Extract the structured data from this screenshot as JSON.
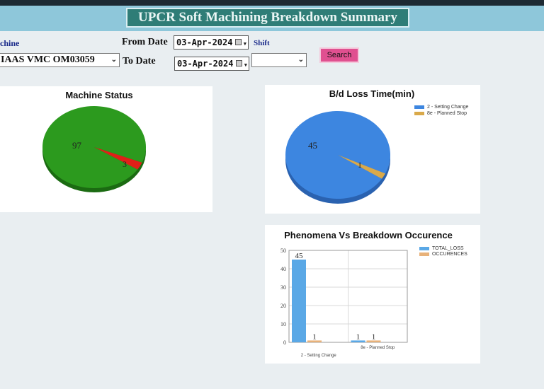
{
  "header": {
    "title": "UPCR Soft Machining Breakdown Summary"
  },
  "filters": {
    "machine_label": "chine",
    "machine_value": "IAAS VMC OM03059",
    "from_date_label": "From Date",
    "from_date_value": "03-Apr-2024",
    "to_date_label": "To Date",
    "to_date_value": "03-Apr-2024",
    "shift_label": "Shift",
    "shift_value": "",
    "search_label": "Search"
  },
  "panels": {
    "machine_status_title": "Machine Status",
    "loss_time_title": "B/d Loss Time(min)",
    "phenomena_title": "Phenomena Vs Breakdown Occurence"
  },
  "chart_data": [
    {
      "type": "pie",
      "title": "Machine Status",
      "labels": [
        "",
        ""
      ],
      "values": [
        97,
        3
      ],
      "colors": [
        "#2c9a1e",
        "#e02018"
      ]
    },
    {
      "type": "pie",
      "title": "B/d Loss Time(min)",
      "labels": [
        "2 - Setting Change",
        "8e - Planned Stop"
      ],
      "values": [
        45,
        1
      ],
      "colors": [
        "#3d86e0",
        "#d9a94a"
      ],
      "legend": "top-right"
    },
    {
      "type": "bar",
      "title": "Phenomena Vs Breakdown Occurence",
      "categories": [
        "2 - Setting Change",
        "8e - Planned Stop"
      ],
      "series": [
        {
          "name": "TOTAL_LOSS",
          "values": [
            45,
            1
          ],
          "color": "#5aa8e6"
        },
        {
          "name": "OCCURENCES",
          "values": [
            1,
            1
          ],
          "color": "#e8b27a"
        }
      ],
      "ylim": [
        0,
        50
      ],
      "yticks": [
        0,
        10,
        20,
        30,
        40,
        50
      ],
      "grid": true,
      "legend": "top-right"
    }
  ]
}
